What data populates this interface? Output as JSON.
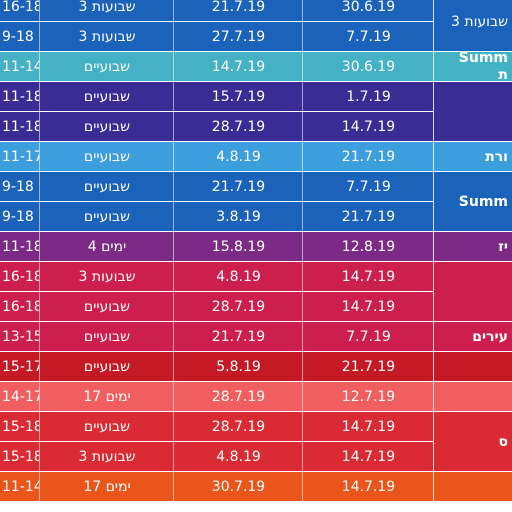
{
  "rows": [
    {
      "age": "16-18",
      "duration": "3 שבועות",
      "end": "21.7.19",
      "start": "30.6.19",
      "color": "#1b62bb"
    },
    {
      "age": "9-18",
      "duration": "3 שבועות",
      "end": "27.7.19",
      "start": "7.7.19",
      "color": "#1b62bb"
    },
    {
      "age": "11-14",
      "duration": "שבועיים",
      "end": "14.7.19",
      "start": "30.6.19",
      "color": "#45b1c4"
    },
    {
      "age": "11-18",
      "duration": "שבועיים",
      "end": "15.7.19",
      "start": "1.7.19",
      "color": "#3b2b95"
    },
    {
      "age": "11-18",
      "duration": "שבועיים",
      "end": "28.7.19",
      "start": "14.7.19",
      "color": "#3b2b95"
    },
    {
      "age": "11-17",
      "duration": "שבועיים",
      "end": "4.8.19",
      "start": "21.7.19",
      "color": "#3d9ede"
    },
    {
      "age": "9-18",
      "duration": "שבועיים",
      "end": "21.7.19",
      "start": "7.7.19",
      "color": "#1b62bb"
    },
    {
      "age": "9-18",
      "duration": "שבועיים",
      "end": "3.8.19",
      "start": "21.7.19",
      "color": "#1b62bb"
    },
    {
      "age": "11-18",
      "duration": "4 ימים",
      "end": "15.8.19",
      "start": "12.8.19",
      "color": "#7c2a86"
    },
    {
      "age": "16-18",
      "duration": "3 שבועות",
      "end": "4.8.19",
      "start": "14.7.19",
      "color": "#cc1f4e"
    },
    {
      "age": "16-18",
      "duration": "שבועיים",
      "end": "28.7.19",
      "start": "14.7.19",
      "color": "#cc1f4e"
    },
    {
      "age": "13-15",
      "duration": "שבועיים",
      "end": "21.7.19",
      "start": "7.7.19",
      "color": "#cc1f4e"
    },
    {
      "age": "15-17",
      "duration": "שבועיים",
      "end": "5.8.19",
      "start": "21.7.19",
      "color": "#c51a25"
    },
    {
      "age": "14-17",
      "duration": "17 ימים",
      "end": "28.7.19",
      "start": "12.7.19",
      "color": "#f05e60"
    },
    {
      "age": "15-18",
      "duration": "שבועיים",
      "end": "28.7.19",
      "start": "14.7.19",
      "color": "#da2a34"
    },
    {
      "age": "15-18",
      "duration": "3 שבועות",
      "end": "4.8.19",
      "start": "14.7.19",
      "color": "#da2a34"
    },
    {
      "age": "11-14",
      "duration": "17 ימים",
      "end": "30.7.19",
      "start": "14.7.19",
      "color": "#e9551b"
    }
  ],
  "programs": [
    {
      "lines": [
        "3 שבועות"
      ],
      "color": "#1b62bb",
      "rows": [
        0,
        1
      ]
    },
    {
      "lines": [
        "Summ",
        "ת"
      ],
      "color": "#45b1c4",
      "rows": [
        2,
        2
      ]
    },
    {
      "lines": [
        ""
      ],
      "color": "#3b2b95",
      "rows": [
        3,
        4
      ]
    },
    {
      "lines": [
        "ורת"
      ],
      "color": "#3d9ede",
      "rows": [
        5,
        5
      ]
    },
    {
      "lines": [
        "Summ"
      ],
      "color": "#1b62bb",
      "rows": [
        6,
        7
      ]
    },
    {
      "lines": [
        "יז"
      ],
      "color": "#7c2a86",
      "rows": [
        8,
        8
      ]
    },
    {
      "lines": [
        ""
      ],
      "color": "#cc1f4e",
      "rows": [
        9,
        10
      ]
    },
    {
      "lines": [
        "עירים"
      ],
      "color": "#cc1f4e",
      "rows": [
        11,
        11
      ]
    },
    {
      "lines": [
        ""
      ],
      "color": "#c51a25",
      "rows": [
        12,
        12
      ]
    },
    {
      "lines": [
        ""
      ],
      "color": "#f05e60",
      "rows": [
        13,
        13
      ]
    },
    {
      "lines": [
        "ס"
      ],
      "color": "#da2a34",
      "rows": [
        14,
        15
      ]
    },
    {
      "lines": [
        ""
      ],
      "color": "#e9551b",
      "rows": [
        16,
        16
      ]
    }
  ]
}
